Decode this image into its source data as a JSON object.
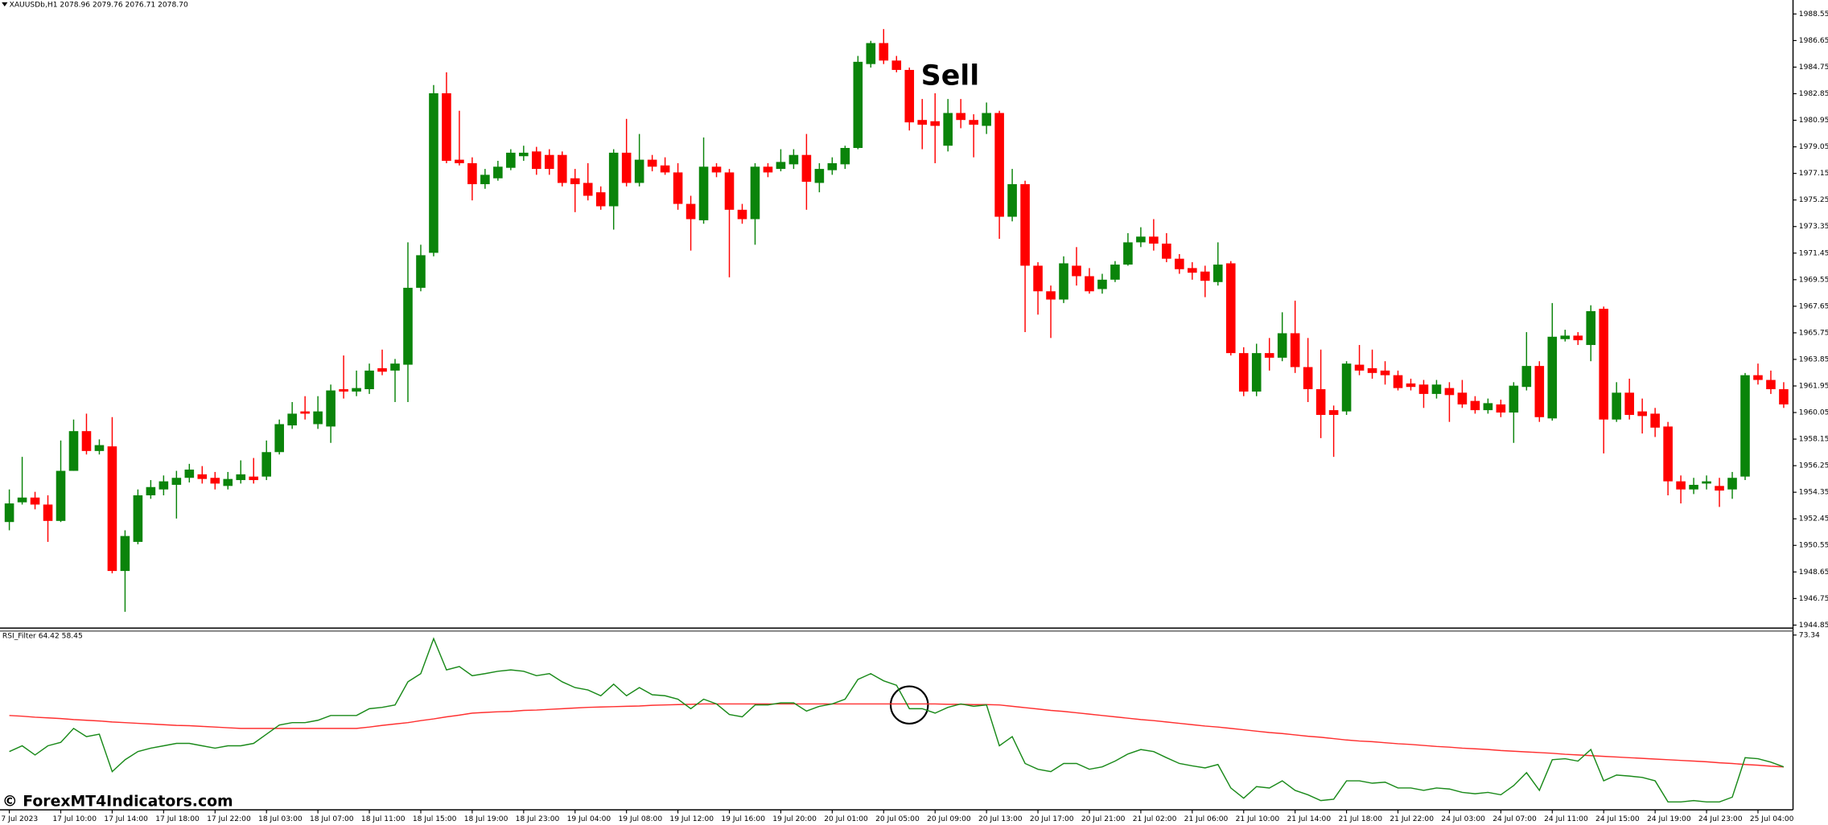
{
  "chart_data": [
    {
      "type": "candlestick",
      "title": "XAUUSDb,H1 2078.96 2079.76 2076.71 2078.70",
      "annotation": "Sell",
      "up_color": "#0a840a",
      "down_color": "#ff0000",
      "categories": [
        "7 Jul 2023",
        null,
        null,
        null,
        "17 Jul 10:00",
        null,
        null,
        null,
        "17 Jul 14:00",
        null,
        null,
        null,
        "17 Jul 18:00",
        null,
        null,
        null,
        "17 Jul 22:00",
        null,
        null,
        null,
        "18 Jul 03:00",
        null,
        null,
        null,
        "18 Jul 07:00",
        null,
        null,
        null,
        "18 Jul 11:00",
        null,
        null,
        null,
        "18 Jul 15:00",
        null,
        null,
        null,
        "18 Jul 19:00",
        null,
        null,
        null,
        "18 Jul 23:00",
        null,
        null,
        null,
        "19 Jul 04:00",
        null,
        null,
        null,
        "19 Jul 08:00",
        null,
        null,
        null,
        "19 Jul 12:00",
        null,
        null,
        null,
        "19 Jul 16:00",
        null,
        null,
        null,
        "19 Jul 20:00",
        null,
        null,
        null,
        "20 Jul 01:00",
        null,
        null,
        null,
        "20 Jul 05:00",
        null,
        null,
        null,
        "20 Jul 09:00",
        null,
        null,
        null,
        "20 Jul 13:00",
        null,
        null,
        null,
        "20 Jul 17:00",
        null,
        null,
        null,
        "20 Jul 21:00",
        null,
        null,
        null,
        "21 Jul 02:00",
        null,
        null,
        null,
        "21 Jul 06:00",
        null,
        null,
        null,
        "21 Jul 10:00",
        null,
        null,
        null,
        "21 Jul 14:00",
        null,
        null,
        null,
        "21 Jul 18:00",
        null,
        null,
        null,
        "21 Jul 22:00",
        null,
        null,
        null,
        "24 Jul 03:00",
        null,
        null,
        null,
        "24 Jul 07:00",
        null,
        null,
        null,
        "24 Jul 11:00",
        null,
        null,
        null,
        "24 Jul 15:00",
        null,
        null,
        null,
        "24 Jul 19:00",
        null,
        null,
        null,
        "24 Jul 23:00",
        null,
        null,
        null,
        "25 Jul 04:00",
        null,
        null
      ],
      "open": [
        1952.22,
        1953.63,
        1953.97,
        1953.47,
        1952.3,
        1955.88,
        1958.72,
        1957.3,
        1957.63,
        1948.72,
        1950.8,
        1954.13,
        1954.55,
        1954.88,
        1955.38,
        1955.63,
        1955.38,
        1954.8,
        1955.22,
        1955.47,
        1955.47,
        1957.22,
        1959.13,
        1960.13,
        1959.22,
        1959.05,
        1961.72,
        1961.55,
        1961.72,
        1963.22,
        1963.05,
        1963.47,
        1968.97,
        1971.47,
        1982.88,
        1978.13,
        1977.88,
        1976.38,
        1976.8,
        1977.55,
        1978.38,
        1978.72,
        1978.47,
        1978.47,
        1976.8,
        1976.47,
        1975.8,
        1974.8,
        1978.63,
        1976.47,
        1978.13,
        1977.72,
        1977.22,
        1974.97,
        1973.8,
        1977.63,
        1977.22,
        1974.55,
        1973.88,
        1977.63,
        1977.47,
        1977.8,
        1978.47,
        1976.47,
        1977.38,
        1977.8,
        1978.97,
        1984.97,
        1986.47,
        1985.22,
        1984.55,
        1980.97,
        1980.88,
        1979.13,
        1981.47,
        1980.97,
        1980.55,
        1981.47,
        1974.05,
        1976.38,
        1970.55,
        1968.72,
        1968.13,
        1970.55,
        1969.8,
        1968.88,
        1969.55,
        1970.63,
        1972.22,
        1972.63,
        1972.13,
        1971.05,
        1970.38,
        1970.13,
        1969.38,
        1970.72,
        1964.3,
        1961.55,
        1964.3,
        1963.97,
        1965.72,
        1963.3,
        1961.72,
        1960.22,
        1960.13,
        1963.47,
        1963.22,
        1963.05,
        1962.72,
        1962.13,
        1962.05,
        1961.38,
        1961.8,
        1961.47,
        1960.88,
        1960.22,
        1960.63,
        1960.05,
        1961.88,
        1963.38,
        1959.63,
        1965.3,
        1965.55,
        1964.88,
        1967.47,
        1959.55,
        1961.47,
        1960.13,
        1959.97,
        1959.05,
        1955.13,
        1954.55,
        1954.97,
        1954.8,
        1954.55,
        1955.47,
        1962.72,
        1962.38,
        1961.72
      ],
      "high": [
        1954.55,
        1956.88,
        1954.38,
        1954.13,
        1958.05,
        1959.55,
        1959.97,
        1958.13,
        1959.72,
        1951.63,
        1954.55,
        1955.22,
        1955.55,
        1955.88,
        1956.38,
        1956.22,
        1955.8,
        1955.8,
        1956.63,
        1956.8,
        1958.05,
        1959.55,
        1960.8,
        1961.22,
        1961.22,
        1962.05,
        1964.13,
        1963.05,
        1963.55,
        1964.55,
        1963.88,
        1972.22,
        1972.05,
        1983.47,
        1984.38,
        1981.63,
        1978.3,
        1977.47,
        1978.05,
        1978.88,
        1979.13,
        1979.05,
        1978.88,
        1978.72,
        1977.47,
        1977.88,
        1976.22,
        1978.88,
        1981.05,
        1979.97,
        1978.47,
        1978.3,
        1977.88,
        1975.55,
        1979.72,
        1977.88,
        1977.47,
        1974.97,
        1977.88,
        1977.88,
        1978.88,
        1978.88,
        1979.97,
        1977.88,
        1978.3,
        1979.13,
        1985.55,
        1986.63,
        1987.47,
        1985.55,
        1984.72,
        1982.47,
        1982.88,
        1982.47,
        1982.47,
        1981.38,
        1982.22,
        1981.63,
        1977.47,
        1976.63,
        1970.8,
        1969.13,
        1971.22,
        1971.88,
        1970.38,
        1969.97,
        1970.88,
        1972.88,
        1973.3,
        1973.88,
        1972.88,
        1971.38,
        1970.8,
        1970.55,
        1972.22,
        1970.88,
        1964.72,
        1964.97,
        1965.38,
        1967.22,
        1968.05,
        1965.38,
        1964.55,
        1960.55,
        1963.72,
        1964.88,
        1964.55,
        1963.72,
        1963.05,
        1962.47,
        1962.38,
        1962.38,
        1962.22,
        1962.38,
        1961.22,
        1961.05,
        1960.97,
        1962.22,
        1965.8,
        1963.72,
        1967.88,
        1965.97,
        1965.8,
        1967.72,
        1967.63,
        1962.22,
        1962.47,
        1961.05,
        1960.38,
        1959.38,
        1955.55,
        1955.38,
        1955.55,
        1955.38,
        1955.8,
        1962.88,
        1963.55,
        1963.05,
        1962.22
      ],
      "low": [
        1951.63,
        1953.47,
        1953.13,
        1950.8,
        1952.22,
        1955.88,
        1957.05,
        1957.05,
        1948.55,
        1945.8,
        1950.63,
        1953.88,
        1954.13,
        1952.47,
        1955.05,
        1954.97,
        1954.55,
        1954.55,
        1954.97,
        1954.97,
        1955.22,
        1957.05,
        1958.88,
        1959.55,
        1958.88,
        1957.88,
        1961.05,
        1961.22,
        1961.38,
        1962.72,
        1960.8,
        1960.8,
        1968.72,
        1971.22,
        1977.88,
        1977.72,
        1975.22,
        1976.05,
        1976.63,
        1977.38,
        1978.05,
        1977.05,
        1977.05,
        1976.22,
        1974.38,
        1975.22,
        1974.55,
        1973.13,
        1976.22,
        1976.22,
        1977.3,
        1977.05,
        1974.55,
        1971.63,
        1973.55,
        1976.88,
        1969.72,
        1973.55,
        1972.05,
        1976.88,
        1977.3,
        1977.47,
        1974.55,
        1975.8,
        1977.05,
        1977.47,
        1978.88,
        1984.72,
        1984.97,
        1984.38,
        1980.22,
        1978.88,
        1977.88,
        1978.72,
        1980.38,
        1978.3,
        1979.97,
        1972.47,
        1973.72,
        1965.8,
        1967.05,
        1965.38,
        1967.88,
        1969.13,
        1968.55,
        1968.55,
        1969.38,
        1970.55,
        1971.88,
        1971.63,
        1970.8,
        1969.97,
        1969.55,
        1968.3,
        1969.13,
        1964.13,
        1961.22,
        1961.22,
        1963.05,
        1963.72,
        1962.88,
        1960.8,
        1958.22,
        1956.88,
        1959.88,
        1962.72,
        1962.47,
        1962.05,
        1961.63,
        1961.63,
        1960.38,
        1961.05,
        1959.38,
        1960.38,
        1959.97,
        1959.97,
        1959.72,
        1957.88,
        1961.63,
        1959.38,
        1959.47,
        1965.13,
        1964.88,
        1963.72,
        1957.13,
        1959.38,
        1959.55,
        1958.55,
        1958.3,
        1954.13,
        1953.55,
        1954.22,
        1954.55,
        1953.3,
        1953.88,
        1955.22,
        1962.05,
        1961.38,
        1960.38
      ],
      "close": [
        1953.55,
        1953.97,
        1953.47,
        1952.3,
        1955.88,
        1958.72,
        1957.3,
        1957.72,
        1948.72,
        1951.22,
        1954.13,
        1954.72,
        1955.13,
        1955.38,
        1955.97,
        1955.3,
        1954.97,
        1955.3,
        1955.63,
        1955.22,
        1957.22,
        1959.22,
        1959.97,
        1959.97,
        1960.13,
        1961.63,
        1961.55,
        1961.8,
        1963.05,
        1962.97,
        1963.55,
        1968.97,
        1971.3,
        1982.88,
        1978.05,
        1977.88,
        1976.38,
        1977.05,
        1977.63,
        1978.63,
        1978.63,
        1977.47,
        1977.47,
        1976.47,
        1976.38,
        1975.55,
        1974.8,
        1978.63,
        1976.47,
        1978.13,
        1977.63,
        1977.22,
        1974.97,
        1973.88,
        1977.63,
        1977.22,
        1974.55,
        1973.88,
        1977.63,
        1977.22,
        1977.97,
        1978.47,
        1976.55,
        1977.47,
        1977.88,
        1978.97,
        1985.13,
        1986.47,
        1985.22,
        1984.55,
        1980.8,
        1980.63,
        1980.55,
        1981.47,
        1980.97,
        1980.63,
        1981.47,
        1974.05,
        1976.38,
        1970.55,
        1968.72,
        1968.13,
        1970.72,
        1969.8,
        1968.72,
        1969.55,
        1970.63,
        1972.22,
        1972.63,
        1972.13,
        1971.05,
        1970.3,
        1970.05,
        1969.47,
        1970.63,
        1964.3,
        1961.55,
        1964.3,
        1963.97,
        1965.72,
        1963.3,
        1961.72,
        1959.88,
        1959.88,
        1963.55,
        1963.05,
        1962.88,
        1962.72,
        1961.8,
        1961.88,
        1961.38,
        1962.05,
        1961.3,
        1960.63,
        1960.22,
        1960.72,
        1960.05,
        1961.97,
        1963.38,
        1959.72,
        1965.47,
        1965.55,
        1965.22,
        1967.3,
        1959.55,
        1961.47,
        1959.88,
        1959.8,
        1958.97,
        1955.13,
        1954.55,
        1954.88,
        1955.13,
        1954.47,
        1955.38,
        1962.72,
        1962.38,
        1961.72,
        1960.63
      ],
      "ylim": [
        1944.72,
        1989.55
      ],
      "yticks": [
        1988.55,
        1986.65,
        1984.75,
        1982.85,
        1980.95,
        1979.05,
        1977.15,
        1975.25,
        1973.35,
        1971.45,
        1969.55,
        1967.65,
        1965.75,
        1963.85,
        1961.95,
        1960.05,
        1958.15,
        1956.25,
        1954.35,
        1952.45,
        1950.55,
        1948.65,
        1946.75,
        1944.85
      ]
    },
    {
      "type": "line",
      "title": "RSI_Filter 64.42 58.45",
      "ylim": [
        21.97,
        73.34
      ],
      "yticks": [
        73.34
      ],
      "series": [
        {
          "color": "#1a8a1a",
          "values": [
            39.1,
            40.8,
            38.1,
            40.8,
            41.8,
            45.9,
            43.5,
            44.2,
            33.2,
            36.7,
            39.1,
            40.1,
            40.8,
            41.5,
            41.5,
            40.8,
            40.1,
            40.8,
            40.8,
            41.5,
            44.2,
            46.9,
            47.6,
            47.6,
            48.3,
            49.7,
            49.7,
            49.7,
            51.7,
            52.1,
            52.8,
            59.6,
            62.0,
            72.3,
            63.1,
            64.1,
            61.4,
            62.0,
            62.7,
            63.1,
            62.7,
            61.4,
            62.0,
            59.6,
            57.9,
            57.2,
            55.5,
            58.9,
            55.5,
            57.9,
            55.8,
            55.5,
            54.5,
            51.7,
            54.5,
            53.1,
            50.0,
            49.3,
            52.8,
            52.8,
            53.4,
            53.4,
            51.0,
            52.4,
            53.1,
            54.5,
            60.3,
            62.0,
            59.9,
            58.6,
            51.7,
            51.7,
            50.4,
            52.1,
            53.1,
            52.4,
            52.8,
            40.8,
            43.5,
            35.6,
            33.9,
            33.2,
            35.6,
            35.6,
            33.9,
            34.6,
            36.3,
            38.4,
            39.7,
            39.1,
            37.3,
            35.6,
            34.9,
            34.3,
            35.3,
            28.4,
            25.4,
            28.8,
            28.4,
            30.5,
            27.7,
            26.4,
            24.7,
            25.1,
            30.5,
            30.5,
            29.8,
            30.1,
            28.4,
            28.4,
            27.7,
            28.4,
            28.1,
            27.1,
            26.7,
            27.1,
            26.4,
            29.1,
            32.9,
            27.7,
            36.7,
            37.0,
            36.3,
            39.7,
            30.5,
            32.2,
            31.9,
            31.5,
            30.5,
            24.3,
            24.3,
            24.7,
            24.3,
            24.3,
            25.7,
            37.3,
            37.0,
            36.0,
            34.6
          ]
        },
        {
          "color": "#ff3030",
          "values": [
            49.7,
            49.5,
            49.2,
            49.0,
            48.8,
            48.5,
            48.3,
            48.1,
            47.8,
            47.6,
            47.4,
            47.2,
            47.0,
            46.8,
            46.7,
            46.5,
            46.3,
            46.1,
            45.9,
            45.9,
            45.9,
            45.9,
            45.9,
            45.9,
            45.9,
            45.9,
            45.9,
            45.9,
            46.3,
            46.8,
            47.2,
            47.6,
            48.2,
            48.7,
            49.3,
            49.8,
            50.4,
            50.6,
            50.8,
            50.9,
            51.2,
            51.3,
            51.5,
            51.7,
            51.9,
            52.1,
            52.2,
            52.3,
            52.4,
            52.5,
            52.7,
            52.8,
            52.9,
            53.0,
            53.1,
            53.1,
            53.1,
            53.1,
            53.1,
            53.1,
            53.1,
            53.1,
            53.1,
            53.1,
            53.1,
            53.1,
            53.1,
            53.1,
            53.1,
            53.1,
            53.1,
            53.1,
            53.1,
            53.0,
            53.0,
            52.9,
            52.9,
            52.8,
            52.4,
            52.0,
            51.6,
            51.2,
            50.9,
            50.5,
            50.1,
            49.7,
            49.3,
            48.9,
            48.5,
            48.2,
            47.8,
            47.4,
            47.0,
            46.6,
            46.3,
            45.9,
            45.5,
            45.1,
            44.7,
            44.4,
            44.0,
            43.6,
            43.3,
            42.9,
            42.5,
            42.2,
            42.0,
            41.7,
            41.4,
            41.2,
            40.9,
            40.6,
            40.4,
            40.1,
            39.9,
            39.7,
            39.4,
            39.2,
            39.0,
            38.8,
            38.6,
            38.3,
            38.1,
            37.9,
            37.7,
            37.5,
            37.3,
            37.1,
            36.9,
            36.7,
            36.5,
            36.3,
            36.1,
            35.8,
            35.6,
            35.3,
            35.1,
            34.8,
            34.6
          ]
        }
      ]
    }
  ],
  "watermark": "© ForexMT4Indicators.com"
}
